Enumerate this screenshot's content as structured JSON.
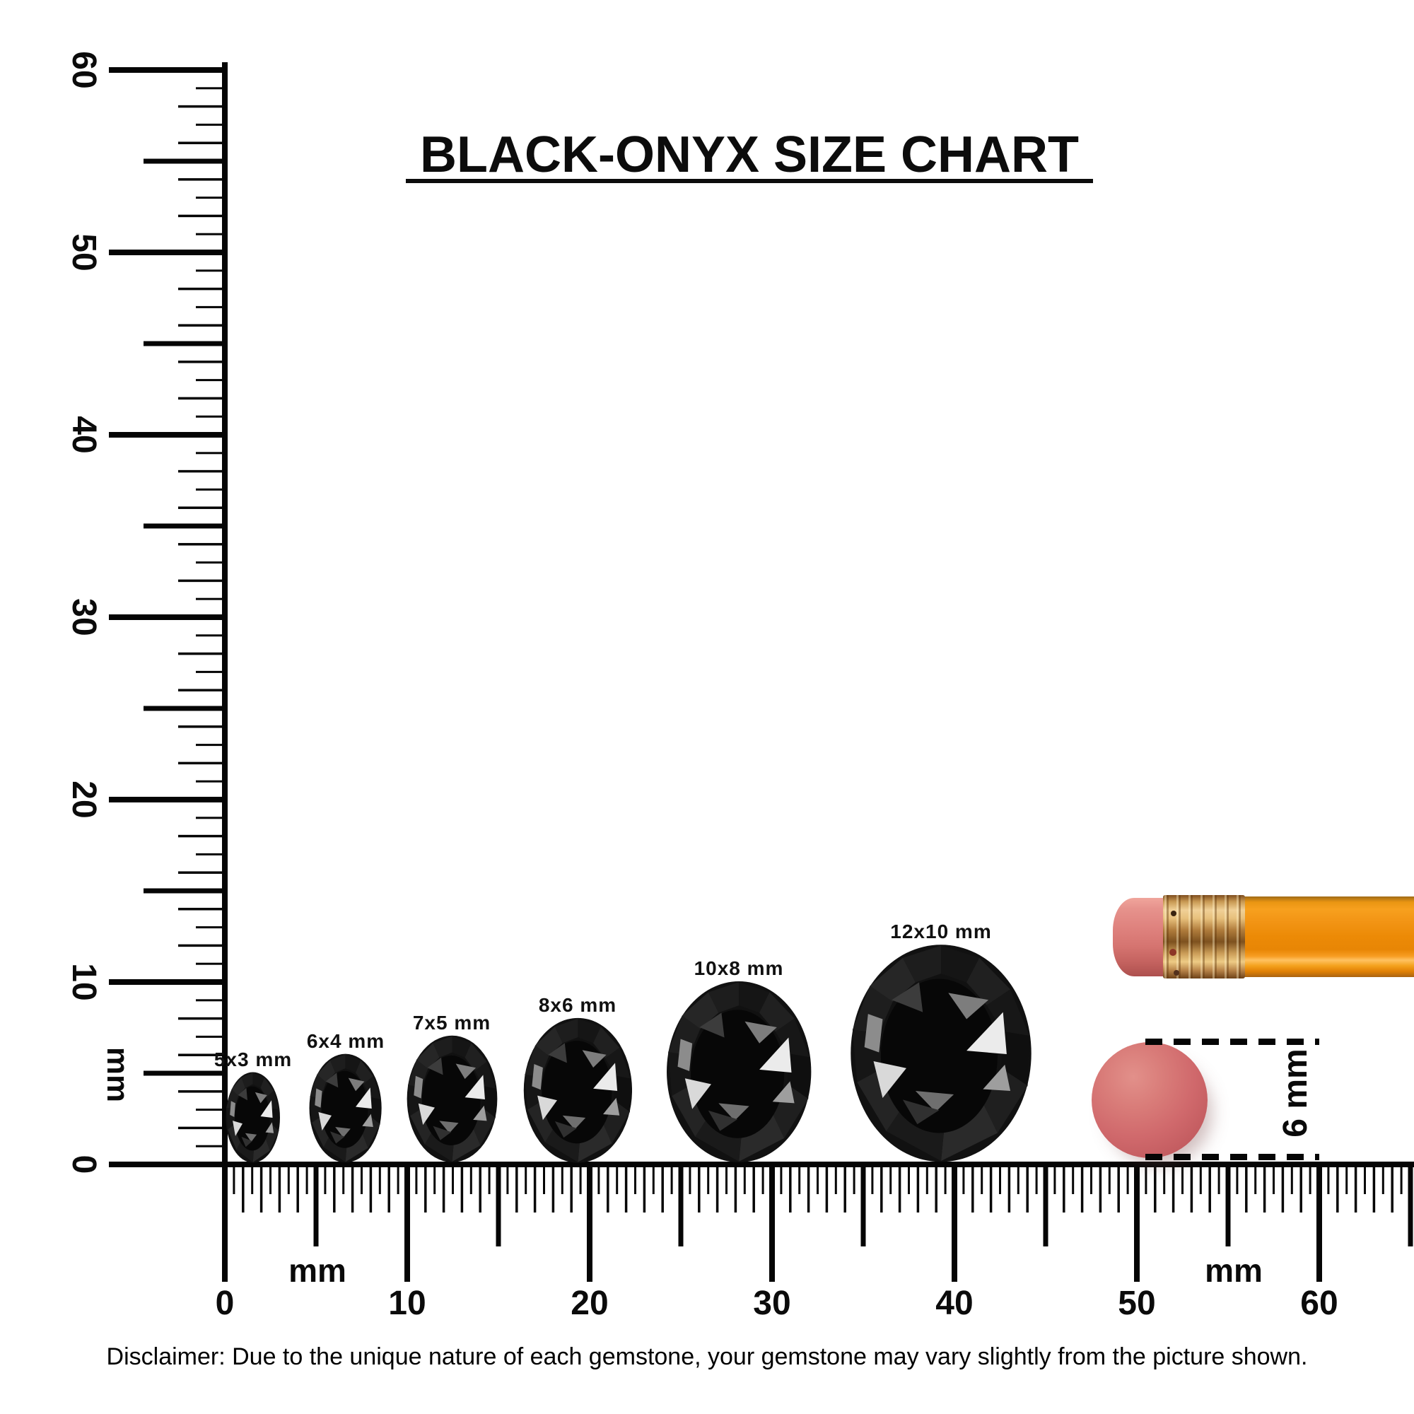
{
  "title": {
    "text": "BLACK-ONYX SIZE CHART"
  },
  "vertical_ruler": {
    "unit_label": "mm",
    "tick_labels": [
      "60",
      "50",
      "40",
      "30",
      "20",
      "10",
      "0"
    ],
    "range_mm": [
      0,
      60
    ]
  },
  "horizontal_ruler": {
    "unit_label_left": "mm",
    "unit_label_right": "mm",
    "tick_labels": [
      "0",
      "10",
      "20",
      "30",
      "40",
      "50",
      "60"
    ],
    "range_mm": [
      0,
      65
    ]
  },
  "gems": [
    {
      "label": "5x3 mm",
      "width_mm": 3,
      "height_mm": 5
    },
    {
      "label": "6x4 mm",
      "width_mm": 4,
      "height_mm": 6
    },
    {
      "label": "7x5 mm",
      "width_mm": 5,
      "height_mm": 7
    },
    {
      "label": "8x6 mm",
      "width_mm": 6,
      "height_mm": 8
    },
    {
      "label": "10x8 mm",
      "width_mm": 8,
      "height_mm": 10
    },
    {
      "label": "12x10 mm",
      "width_mm": 10,
      "height_mm": 12
    }
  ],
  "reference": {
    "disc_height_label": "6 mm",
    "objects": [
      "pencil-with-eraser",
      "round-eraser-disc"
    ]
  },
  "disclaimer": {
    "text": "Disclaimer: Due to the unique nature of each gemstone, your gemstone may vary slightly from the picture shown."
  },
  "colors": {
    "ink": "#0a0a0a",
    "gem_black": "#0d0d0d",
    "pencil_orange": "#f29414",
    "eraser_pink": "#df827e",
    "ferrule_gold": "#d8a55c",
    "disc_pink": "#d0696c"
  }
}
